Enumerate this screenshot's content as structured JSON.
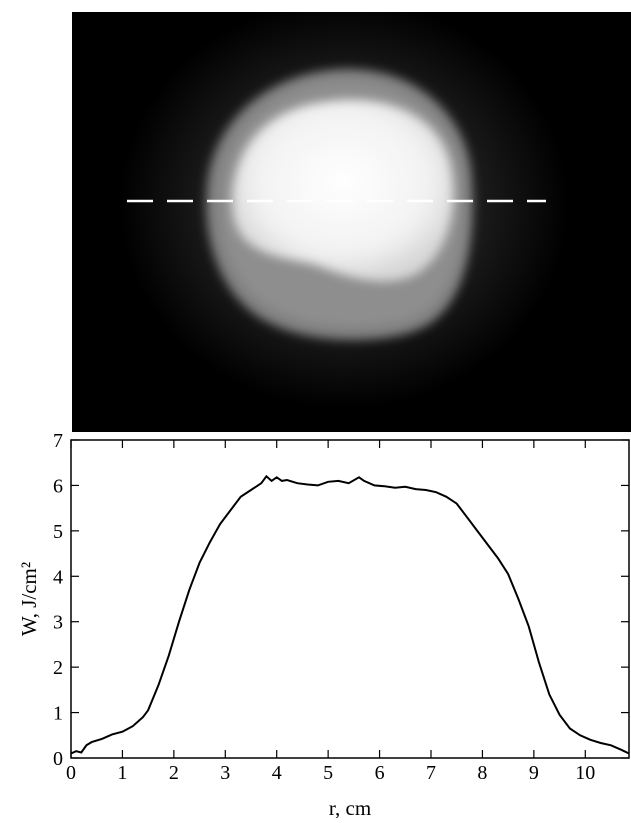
{
  "beam_image": {
    "section_line_style": "dashed",
    "colors": {
      "background": "#000000",
      "halo": "#7a7a7a",
      "core": "#f4f4f4",
      "section_line": "#ffffff"
    }
  },
  "chart_data": {
    "type": "line",
    "xlabel": "r, cm",
    "ylabel": "W, J/cm²",
    "xlim": [
      0,
      10.85
    ],
    "ylim": [
      0,
      7
    ],
    "xticks": [
      0,
      1,
      2,
      3,
      4,
      5,
      6,
      7,
      8,
      9,
      10
    ],
    "yticks": [
      0,
      1,
      2,
      3,
      4,
      5,
      6,
      7
    ],
    "grid": false,
    "series": [
      {
        "color": "#000000",
        "x": [
          0,
          0.1,
          0.2,
          0.3,
          0.4,
          0.6,
          0.8,
          1.0,
          1.2,
          1.4,
          1.5,
          1.7,
          1.9,
          2.1,
          2.3,
          2.5,
          2.7,
          2.9,
          3.1,
          3.3,
          3.5,
          3.7,
          3.8,
          3.9,
          4.0,
          4.1,
          4.2,
          4.4,
          4.6,
          4.8,
          5.0,
          5.2,
          5.4,
          5.6,
          5.7,
          5.9,
          6.1,
          6.3,
          6.5,
          6.7,
          6.9,
          7.1,
          7.3,
          7.5,
          7.7,
          7.9,
          8.1,
          8.3,
          8.5,
          8.7,
          8.9,
          9.1,
          9.3,
          9.5,
          9.7,
          9.9,
          10.1,
          10.3,
          10.5,
          10.7,
          10.85
        ],
        "y": [
          0.1,
          0.15,
          0.12,
          0.28,
          0.35,
          0.42,
          0.52,
          0.58,
          0.7,
          0.9,
          1.05,
          1.6,
          2.25,
          3.0,
          3.7,
          4.3,
          4.75,
          5.15,
          5.45,
          5.75,
          5.9,
          6.05,
          6.2,
          6.1,
          6.18,
          6.1,
          6.12,
          6.05,
          6.02,
          6.0,
          6.08,
          6.1,
          6.05,
          6.18,
          6.1,
          6.0,
          5.98,
          5.95,
          5.97,
          5.92,
          5.9,
          5.85,
          5.75,
          5.6,
          5.3,
          5.0,
          4.7,
          4.4,
          4.05,
          3.5,
          2.9,
          2.1,
          1.4,
          0.95,
          0.65,
          0.5,
          0.4,
          0.33,
          0.28,
          0.18,
          0.1
        ]
      }
    ]
  }
}
